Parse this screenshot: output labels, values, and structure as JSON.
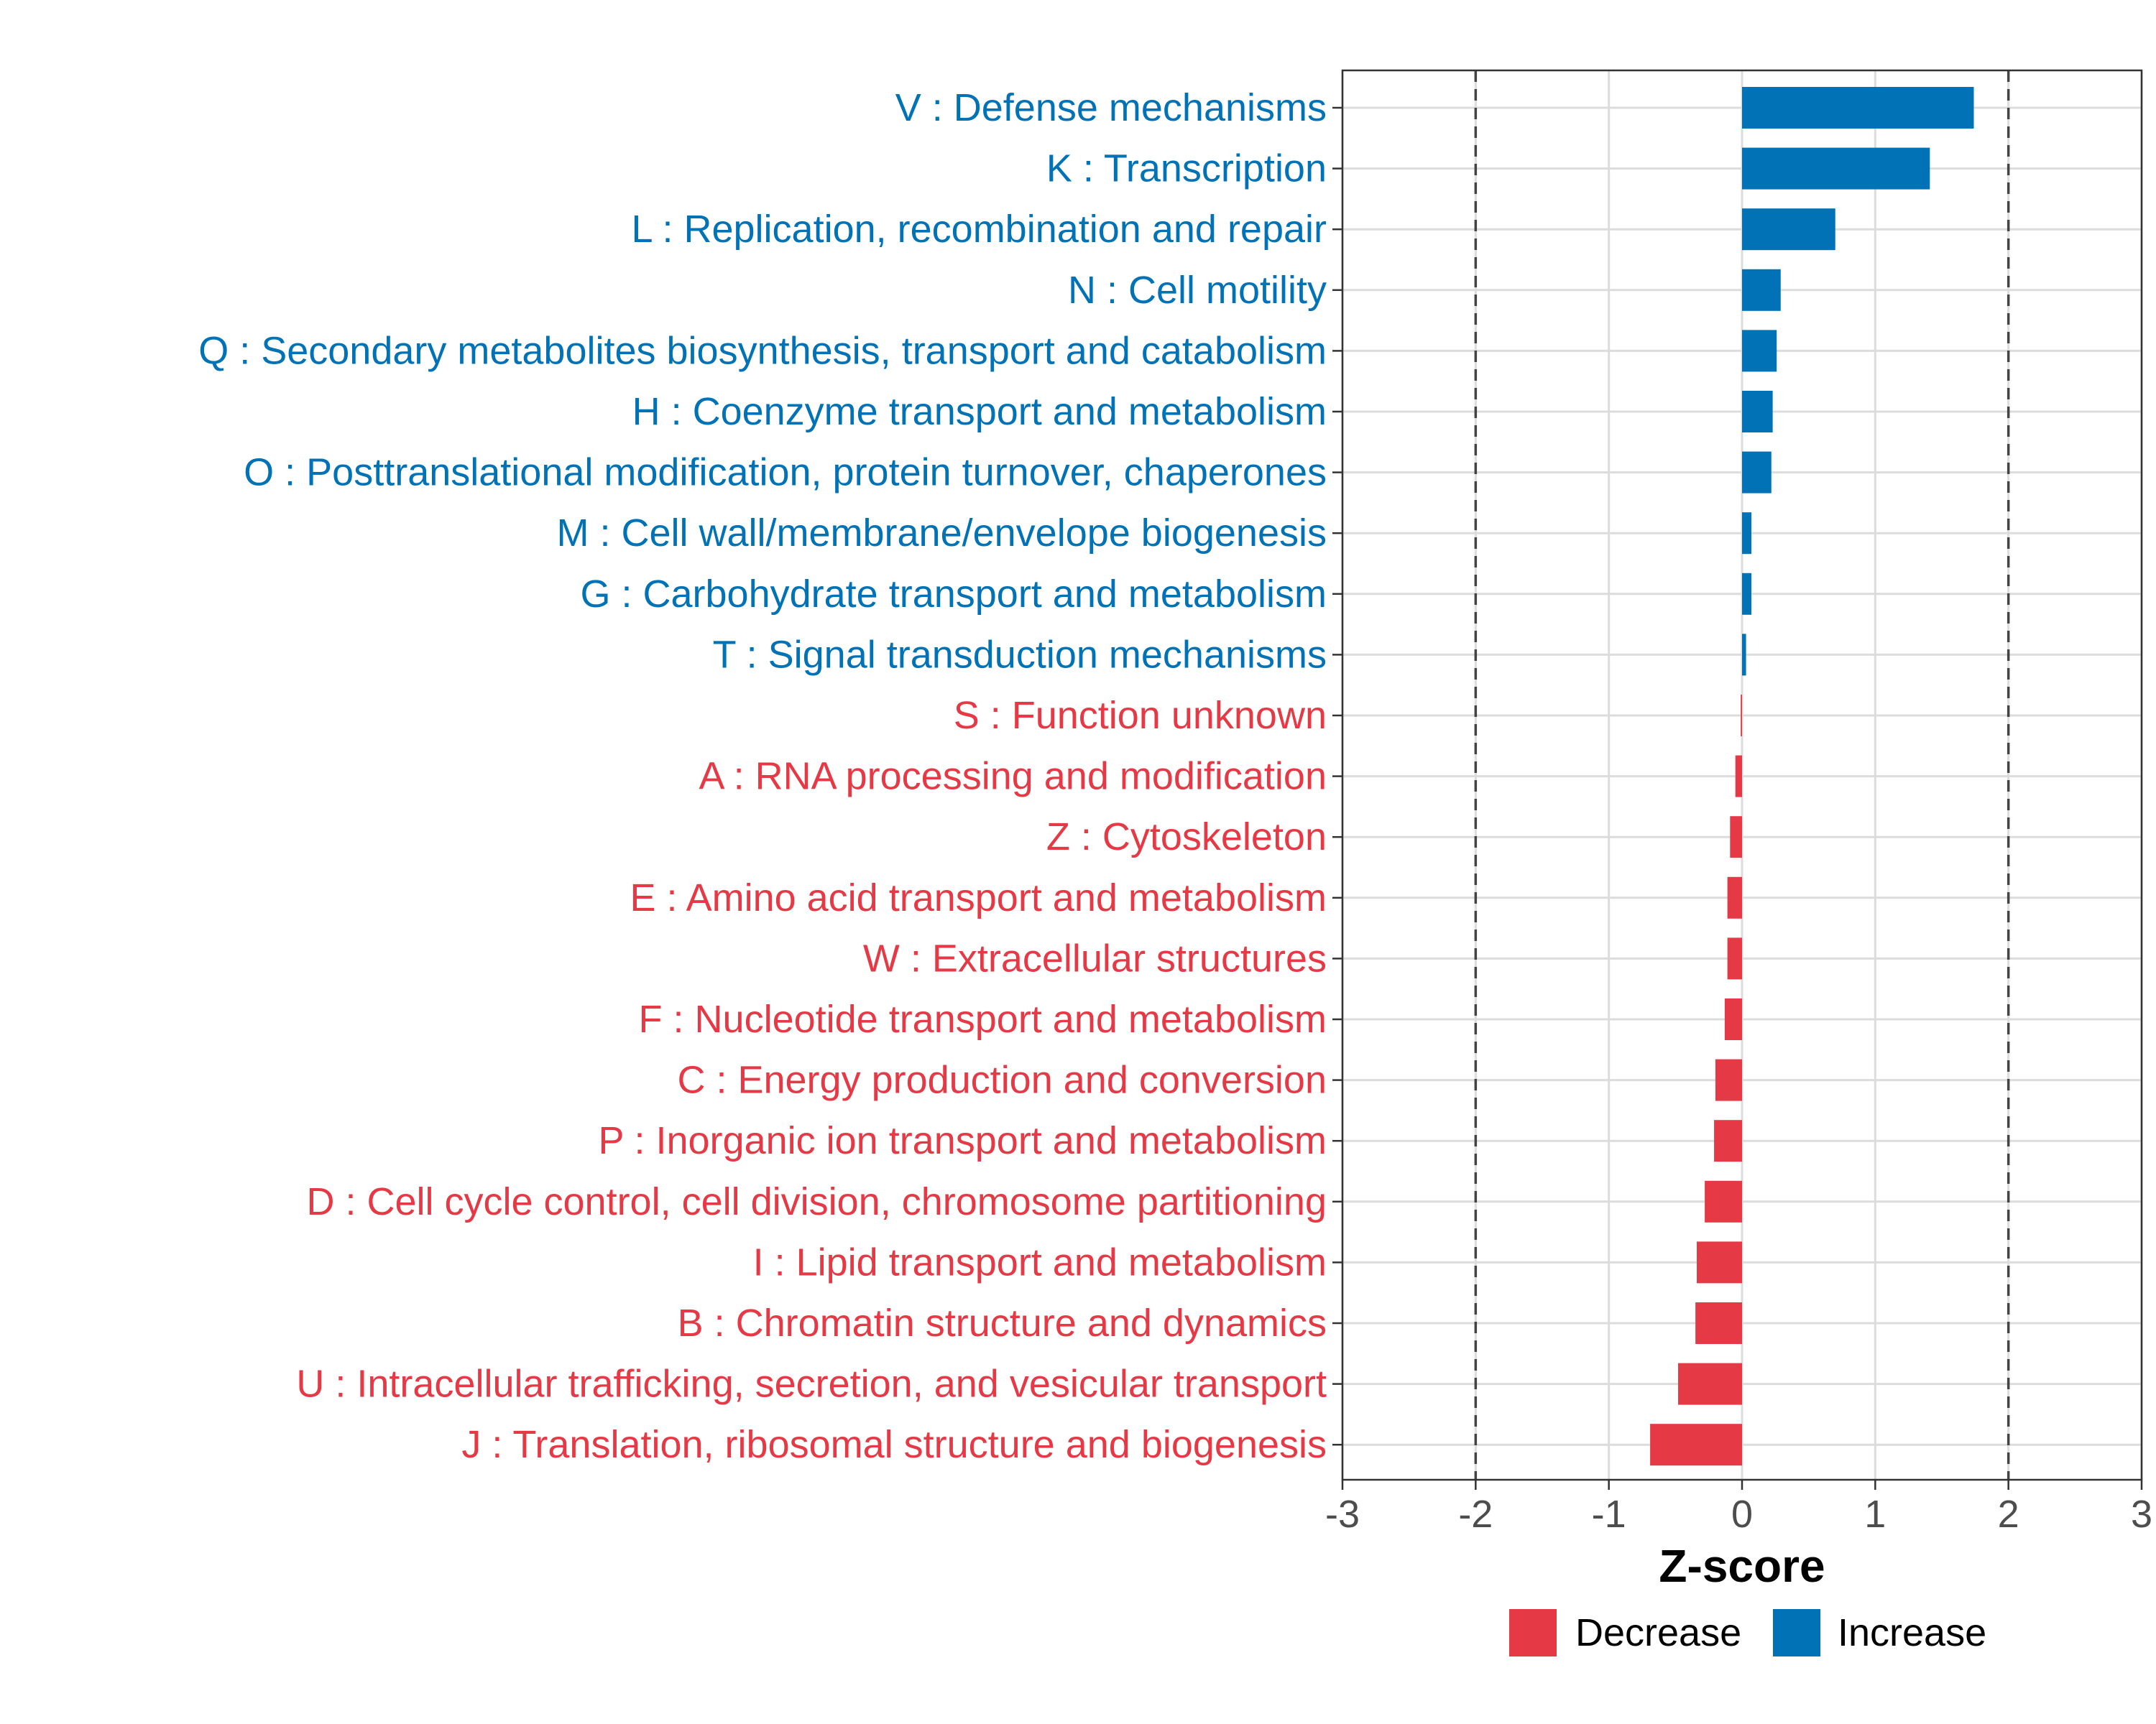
{
  "chart_data": {
    "type": "bar",
    "orientation": "horizontal",
    "xlabel": "Z-score",
    "xlim": [
      -3,
      3
    ],
    "xticks": [
      -3,
      -2,
      -1,
      0,
      1,
      2,
      3
    ],
    "reference_lines": [
      -2,
      2
    ],
    "grid": true,
    "legend_position": "bottom",
    "colors": {
      "Increase": "#0072B5",
      "Decrease": "#E63946"
    },
    "legend": [
      {
        "label": "Decrease",
        "color": "#E63946"
      },
      {
        "label": "Increase",
        "color": "#0072B5"
      }
    ],
    "categories": [
      "V : Defense mechanisms",
      "K : Transcription",
      "L : Replication, recombination and repair",
      "N : Cell motility",
      "Q : Secondary metabolites biosynthesis, transport and catabolism",
      "H : Coenzyme transport and metabolism",
      "O : Posttranslational modification, protein turnover, chaperones",
      "M : Cell wall/membrane/envelope biogenesis",
      "G : Carbohydrate transport and metabolism",
      "T : Signal transduction mechanisms",
      "S : Function unknown",
      "A : RNA processing and modification",
      "Z : Cytoskeleton",
      "E : Amino acid transport and metabolism",
      "W : Extracellular structures",
      "F : Nucleotide transport and metabolism",
      "C : Energy production and conversion",
      "P : Inorganic ion transport and metabolism",
      "D : Cell cycle control, cell division, chromosome partitioning",
      "I : Lipid transport and metabolism",
      "B : Chromatin structure and dynamics",
      "U : Intracellular trafficking, secretion, and vesicular transport",
      "J : Translation, ribosomal structure and biogenesis"
    ],
    "values": [
      1.74,
      1.41,
      0.7,
      0.29,
      0.26,
      0.23,
      0.22,
      0.07,
      0.07,
      0.03,
      -0.01,
      -0.05,
      -0.09,
      -0.11,
      -0.11,
      -0.13,
      -0.2,
      -0.21,
      -0.28,
      -0.34,
      -0.35,
      -0.48,
      -0.69
    ],
    "direction": [
      "Increase",
      "Increase",
      "Increase",
      "Increase",
      "Increase",
      "Increase",
      "Increase",
      "Increase",
      "Increase",
      "Increase",
      "Decrease",
      "Decrease",
      "Decrease",
      "Decrease",
      "Decrease",
      "Decrease",
      "Decrease",
      "Decrease",
      "Decrease",
      "Decrease",
      "Decrease",
      "Decrease",
      "Decrease"
    ]
  }
}
